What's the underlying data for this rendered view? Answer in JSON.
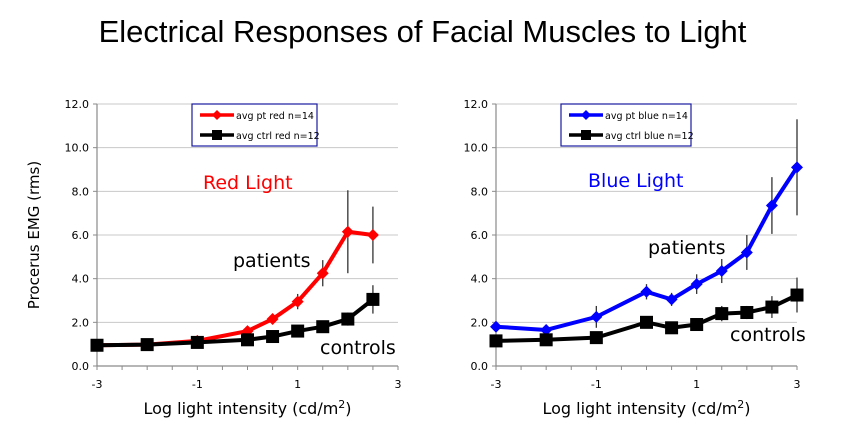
{
  "title": "Electrical Responses of Facial Muscles to Light",
  "chart_data": [
    {
      "type": "line",
      "panel_label": "Red Light",
      "panel_label_color": "#ff0000",
      "ylabel": "Procerus EMG (rms)",
      "xlabel": "Log light intensity (cd/m",
      "xlabel_sup": "2",
      "xlabel_end": ")",
      "xlim": [
        -3,
        3
      ],
      "ylim": [
        0,
        12
      ],
      "xticks": [
        "-3",
        "-1",
        "1",
        "3"
      ],
      "xtick_values": [
        -3,
        -1,
        1,
        3
      ],
      "yticks": [
        "0.0",
        "2.0",
        "4.0",
        "6.0",
        "8.0",
        "10.0",
        "12.0"
      ],
      "ytick_values": [
        0,
        2,
        4,
        6,
        8,
        10,
        12
      ],
      "legend_position": "top",
      "x": [
        -3,
        -2,
        -1,
        0,
        0.5,
        1,
        1.5,
        2,
        2.5
      ],
      "series": [
        {
          "name": "avg pt red n=14",
          "annotation": "patients",
          "color": "#ff0000",
          "marker": "diamond",
          "values": [
            0.95,
            0.98,
            1.15,
            1.6,
            2.15,
            2.95,
            4.25,
            6.15,
            6.0
          ],
          "errors": [
            0,
            0,
            0,
            0,
            0.2,
            0.35,
            0.6,
            1.9,
            1.3
          ]
        },
        {
          "name": "avg ctrl red n=12",
          "annotation": "controls",
          "color": "#000000",
          "marker": "square",
          "values": [
            0.95,
            0.98,
            1.08,
            1.2,
            1.35,
            1.6,
            1.8,
            2.15,
            3.05
          ],
          "errors": [
            0,
            0,
            0,
            0.15,
            0.15,
            0.2,
            0.25,
            0.3,
            0.65
          ]
        }
      ]
    },
    {
      "type": "line",
      "panel_label": "Blue Light",
      "panel_label_color": "#0000ff",
      "ylabel": "",
      "xlabel": "Log light intensity (cd/m",
      "xlabel_sup": "2",
      "xlabel_end": ")",
      "xlim": [
        -3,
        3
      ],
      "ylim": [
        0,
        12
      ],
      "xticks": [
        "-3",
        "-1",
        "1",
        "3"
      ],
      "xtick_values": [
        -3,
        -1,
        1,
        3
      ],
      "yticks": [
        "0.0",
        "2.0",
        "4.0",
        "6.0",
        "8.0",
        "10.0",
        "12.0"
      ],
      "ytick_values": [
        0,
        2,
        4,
        6,
        8,
        10,
        12
      ],
      "legend_position": "top",
      "x": [
        -3,
        -2,
        -1,
        0,
        0.5,
        1,
        1.5,
        2,
        2.5,
        3
      ],
      "series": [
        {
          "name": "avg pt blue n=14",
          "annotation": "patients",
          "color": "#0000ff",
          "marker": "diamond",
          "values": [
            1.8,
            1.65,
            2.25,
            3.4,
            3.05,
            3.75,
            4.35,
            5.2,
            7.35,
            9.1
          ],
          "errors": [
            0.15,
            0,
            0.5,
            0.35,
            0.3,
            0.45,
            0.55,
            0.8,
            1.3,
            2.2
          ]
        },
        {
          "name": "avg ctrl blue n=12",
          "annotation": "controls",
          "color": "#000000",
          "marker": "square",
          "values": [
            1.15,
            1.2,
            1.3,
            2.0,
            1.75,
            1.9,
            2.4,
            2.45,
            2.7,
            3.25
          ],
          "errors": [
            0,
            0,
            0,
            0.25,
            0.2,
            0.25,
            0.35,
            0.3,
            0.5,
            0.8
          ]
        }
      ]
    }
  ]
}
